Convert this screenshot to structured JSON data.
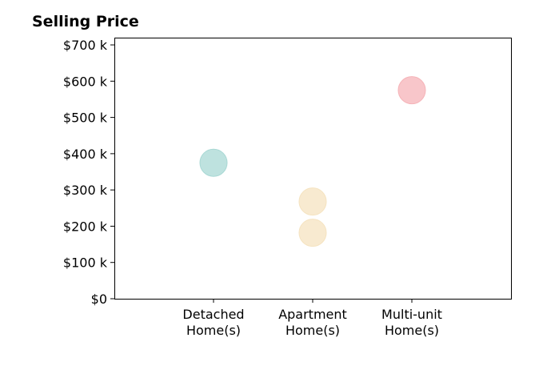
{
  "chart_data": {
    "type": "scatter",
    "title": "Selling Price",
    "xlabel": "",
    "ylabel": "",
    "categories": [
      "Detached\nHome(s)",
      "Apartment\nHome(s)",
      "Multi-unit\nHome(s)"
    ],
    "xlim": [
      -1,
      3
    ],
    "ylim": [
      0,
      720000
    ],
    "yticks": [
      0,
      100000,
      200000,
      300000,
      400000,
      500000,
      600000,
      700000
    ],
    "ytick_labels": [
      "$0",
      "$100 k",
      "$200 k",
      "$300 k",
      "$400 k",
      "$500 k",
      "$600 k",
      "$700 k"
    ],
    "grid": false,
    "points": [
      {
        "category": "Detached\nHome(s)",
        "value": 375000,
        "color": "#a8d8d4"
      },
      {
        "category": "Apartment\nHome(s)",
        "value": 268000,
        "color": "#f5e3c0"
      },
      {
        "category": "Apartment\nHome(s)",
        "value": 182000,
        "color": "#f5e3c0"
      },
      {
        "category": "Multi-unit\nHome(s)",
        "value": 575000,
        "color": "#f5b3b8"
      }
    ]
  }
}
